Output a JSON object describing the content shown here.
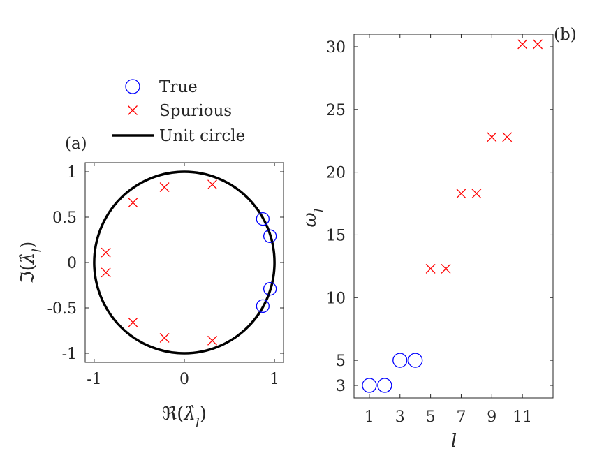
{
  "chart_data": [
    {
      "type": "scatter",
      "panel_label": "(a)",
      "xlabel": "ℜ(λ̂_l)",
      "ylabel": "ℑ(λ̂_l)",
      "xlim": [
        -1.1,
        1.1
      ],
      "ylim": [
        -1.1,
        1.1
      ],
      "xticks": [
        -1,
        0,
        1
      ],
      "xtick_labels": [
        "-1",
        "0",
        "1"
      ],
      "yticks": [
        1,
        0.5,
        0,
        -0.5,
        -1
      ],
      "ytick_labels": [
        "1",
        "0.5",
        "0",
        "-0.5",
        "-1"
      ],
      "grid": false,
      "legend": {
        "placement": "above",
        "entries": [
          {
            "label": "True",
            "marker": "circle",
            "color": "#0000ff"
          },
          {
            "label": "Spurious",
            "marker": "x",
            "color": "#ff0000"
          },
          {
            "label": "Unit circle",
            "marker": "line",
            "color": "#000000"
          }
        ]
      },
      "series": [
        {
          "name": "True",
          "marker": "circle",
          "color": "#0000ff",
          "points": [
            [
              0.87,
              0.48
            ],
            [
              0.95,
              0.29
            ],
            [
              0.95,
              -0.29
            ],
            [
              0.87,
              -0.48
            ]
          ]
        },
        {
          "name": "Spurious",
          "marker": "x",
          "color": "#ff0000",
          "points": [
            [
              -0.22,
              0.83
            ],
            [
              0.31,
              0.86
            ],
            [
              -0.57,
              0.66
            ],
            [
              -0.87,
              0.11
            ],
            [
              -0.87,
              -0.11
            ],
            [
              -0.57,
              -0.66
            ],
            [
              -0.22,
              -0.83
            ],
            [
              0.31,
              -0.86
            ]
          ]
        },
        {
          "name": "Unit circle",
          "marker": "line",
          "color": "#000000",
          "radius": 1
        }
      ]
    },
    {
      "type": "scatter",
      "panel_label": "(b)",
      "xlabel": "l",
      "ylabel": "ω_l",
      "xlim": [
        0,
        13
      ],
      "ylim": [
        2,
        31
      ],
      "xticks": [
        1,
        3,
        5,
        7,
        9,
        11
      ],
      "xtick_labels": [
        "1",
        "3",
        "5",
        "7",
        "9",
        "11"
      ],
      "yticks": [
        3,
        5,
        10,
        15,
        20,
        25,
        30
      ],
      "ytick_labels": [
        "3",
        "5",
        "10",
        "15",
        "20",
        "25",
        "30"
      ],
      "grid": false,
      "series": [
        {
          "name": "True",
          "marker": "circle",
          "color": "#0000ff",
          "points": [
            [
              1,
              3
            ],
            [
              2,
              3
            ],
            [
              3,
              5
            ],
            [
              4,
              5
            ]
          ]
        },
        {
          "name": "Spurious",
          "marker": "x",
          "color": "#ff0000",
          "points": [
            [
              5,
              12.3
            ],
            [
              6,
              12.3
            ],
            [
              7,
              18.3
            ],
            [
              8,
              18.3
            ],
            [
              9,
              22.8
            ],
            [
              10,
              22.8
            ],
            [
              11,
              30.2
            ],
            [
              12,
              30.2
            ]
          ]
        }
      ]
    }
  ]
}
